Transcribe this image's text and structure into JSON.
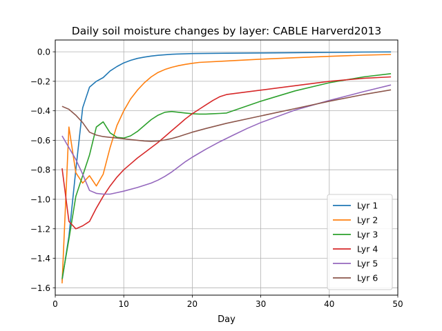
{
  "chart_data": {
    "type": "line",
    "title": "Daily soil moisture changes by layer: CABLE Harverd2013",
    "xlabel": "Day",
    "ylabel": "",
    "xlim": [
      0,
      50
    ],
    "ylim": [
      -1.65,
      0.08
    ],
    "xticks": [
      0,
      10,
      20,
      30,
      40,
      50
    ],
    "yticks": [
      0.0,
      -0.2,
      -0.4,
      -0.6,
      -0.8,
      -1.0,
      -1.2,
      -1.4,
      -1.6
    ],
    "xtick_labels": [
      "0",
      "10",
      "20",
      "30",
      "40",
      "50"
    ],
    "ytick_labels": [
      "0.0",
      "−0.2",
      "−0.4",
      "−0.6",
      "−0.8",
      "−1.0",
      "−1.2",
      "−1.4",
      "−1.6"
    ],
    "grid": true,
    "legend_position": "lower-right",
    "series": [
      {
        "name": "Lyr 1",
        "color": "#1f77b4",
        "x": [
          1,
          2,
          3,
          4,
          5,
          6,
          7,
          8,
          9,
          10,
          11,
          12,
          13,
          14,
          15,
          16,
          17,
          18,
          20,
          25,
          30,
          35,
          40,
          45,
          49
        ],
        "y": [
          -1.55,
          -1.25,
          -0.8,
          -0.38,
          -0.24,
          -0.2,
          -0.175,
          -0.13,
          -0.1,
          -0.075,
          -0.058,
          -0.045,
          -0.036,
          -0.029,
          -0.024,
          -0.02,
          -0.017,
          -0.015,
          -0.012,
          -0.01,
          -0.008,
          -0.006,
          -0.004,
          -0.002,
          -0.001
        ]
      },
      {
        "name": "Lyr 2",
        "color": "#ff7f0e",
        "x": [
          1,
          2,
          3,
          4,
          5,
          6,
          7,
          8,
          9,
          10,
          11,
          12,
          13,
          14,
          15,
          16,
          17,
          18,
          19,
          20,
          21,
          25,
          30,
          35,
          40,
          45,
          49
        ],
        "y": [
          -1.57,
          -0.51,
          -0.82,
          -0.89,
          -0.84,
          -0.91,
          -0.83,
          -0.65,
          -0.5,
          -0.4,
          -0.32,
          -0.26,
          -0.21,
          -0.17,
          -0.14,
          -0.12,
          -0.105,
          -0.094,
          -0.085,
          -0.078,
          -0.072,
          -0.062,
          -0.05,
          -0.04,
          -0.031,
          -0.023,
          -0.018
        ]
      },
      {
        "name": "Lyr 3",
        "color": "#2ca02c",
        "x": [
          1,
          2,
          3,
          4,
          5,
          6,
          7,
          8,
          9,
          10,
          11,
          12,
          13,
          14,
          15,
          16,
          17,
          18,
          19,
          20,
          21,
          22,
          23,
          24,
          25,
          30,
          35,
          40,
          45,
          49
        ],
        "y": [
          -1.54,
          -1.27,
          -0.98,
          -0.84,
          -0.7,
          -0.51,
          -0.475,
          -0.55,
          -0.58,
          -0.585,
          -0.57,
          -0.54,
          -0.5,
          -0.46,
          -0.43,
          -0.41,
          -0.405,
          -0.41,
          -0.415,
          -0.42,
          -0.422,
          -0.422,
          -0.42,
          -0.418,
          -0.415,
          -0.335,
          -0.265,
          -0.21,
          -0.17,
          -0.148
        ]
      },
      {
        "name": "Lyr 4",
        "color": "#d62728",
        "x": [
          1,
          2,
          3,
          4,
          5,
          6,
          7,
          8,
          9,
          10,
          11,
          12,
          13,
          14,
          15,
          16,
          17,
          18,
          19,
          20,
          21,
          22,
          23,
          24,
          25,
          30,
          35,
          40,
          45,
          49
        ],
        "y": [
          -0.79,
          -1.15,
          -1.2,
          -1.18,
          -1.15,
          -1.06,
          -0.98,
          -0.91,
          -0.85,
          -0.8,
          -0.76,
          -0.72,
          -0.685,
          -0.65,
          -0.615,
          -0.575,
          -0.535,
          -0.495,
          -0.455,
          -0.42,
          -0.39,
          -0.36,
          -0.33,
          -0.305,
          -0.29,
          -0.26,
          -0.23,
          -0.2,
          -0.18,
          -0.17
        ]
      },
      {
        "name": "Lyr 5",
        "color": "#9467bd",
        "x": [
          1,
          2,
          3,
          4,
          5,
          6,
          7,
          8,
          9,
          10,
          12,
          14,
          15,
          16,
          17,
          18,
          19,
          20,
          22,
          24,
          26,
          28,
          30,
          35,
          40,
          45,
          49
        ],
        "y": [
          -0.57,
          -0.65,
          -0.73,
          -0.83,
          -0.94,
          -0.96,
          -0.965,
          -0.965,
          -0.955,
          -0.945,
          -0.92,
          -0.89,
          -0.87,
          -0.845,
          -0.815,
          -0.78,
          -0.745,
          -0.715,
          -0.66,
          -0.61,
          -0.565,
          -0.52,
          -0.48,
          -0.395,
          -0.33,
          -0.27,
          -0.225
        ]
      },
      {
        "name": "Lyr 6",
        "color": "#8c564b",
        "x": [
          1,
          2,
          3,
          4,
          5,
          6,
          7,
          8,
          9,
          10,
          11,
          12,
          13,
          14,
          15,
          16,
          17,
          18,
          19,
          20,
          22,
          25,
          30,
          35,
          40,
          45,
          49
        ],
        "y": [
          -0.37,
          -0.39,
          -0.43,
          -0.48,
          -0.545,
          -0.565,
          -0.575,
          -0.58,
          -0.585,
          -0.59,
          -0.595,
          -0.6,
          -0.605,
          -0.607,
          -0.605,
          -0.598,
          -0.588,
          -0.575,
          -0.56,
          -0.545,
          -0.52,
          -0.485,
          -0.435,
          -0.385,
          -0.335,
          -0.29,
          -0.258
        ]
      }
    ]
  }
}
